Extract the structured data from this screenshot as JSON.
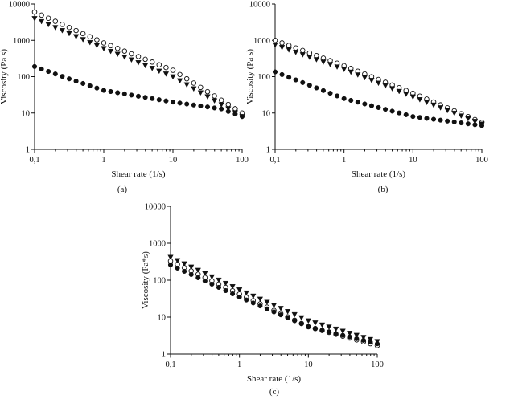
{
  "chart_data": [
    {
      "panel": "(a)",
      "type": "scatter",
      "xlabel": "Shear rate (1/s)",
      "ylabel": "Viscosity (Pa s)",
      "x_scale": "log",
      "y_scale": "log",
      "xlim": [
        0.1,
        100
      ],
      "ylim": [
        1,
        10000
      ],
      "x_ticks": [
        0.1,
        1,
        10,
        100
      ],
      "x_tick_labels": [
        "0,1",
        "1",
        "10",
        "100"
      ],
      "y_ticks": [
        1,
        10,
        100,
        1000,
        10000
      ],
      "y_tick_labels": [
        "1",
        "10",
        "100",
        "1000",
        "10000"
      ],
      "grid": false,
      "legend": "none",
      "series": [
        {
          "marker": "open-circle",
          "x_start": 0.1,
          "x_end": 100,
          "n_points": 31,
          "anchors": [
            [
              0.1,
              6000
            ],
            [
              1,
              850
            ],
            [
              10,
              150
            ],
            [
              100,
              10
            ]
          ]
        },
        {
          "marker": "filled-triangle-down",
          "x_start": 0.1,
          "x_end": 100,
          "n_points": 31,
          "anchors": [
            [
              0.1,
              4000
            ],
            [
              1,
              600
            ],
            [
              10,
              100
            ],
            [
              100,
              8
            ]
          ]
        },
        {
          "marker": "filled-circle",
          "x_start": 0.1,
          "x_end": 100,
          "n_points": 31,
          "anchors": [
            [
              0.1,
              190
            ],
            [
              0.3,
              90
            ],
            [
              1,
              42
            ],
            [
              10,
              20
            ],
            [
              50,
              13
            ],
            [
              100,
              8
            ]
          ]
        }
      ]
    },
    {
      "panel": "(b)",
      "type": "scatter",
      "xlabel": "Shear rate (1/s)",
      "ylabel": "Viscosity (Pa s)",
      "x_scale": "log",
      "y_scale": "log",
      "xlim": [
        0.1,
        100
      ],
      "ylim": [
        1,
        10000
      ],
      "x_ticks": [
        0.1,
        1,
        10,
        100
      ],
      "x_tick_labels": [
        "0,1",
        "1",
        "10",
        "100"
      ],
      "y_ticks": [
        1,
        10,
        100,
        1000,
        10000
      ],
      "y_tick_labels": [
        "1",
        "10",
        "100",
        "1000",
        "10000"
      ],
      "grid": false,
      "legend": "none",
      "series": [
        {
          "marker": "open-circle",
          "x_start": 0.1,
          "x_end": 100,
          "n_points": 31,
          "anchors": [
            [
              0.1,
              1000
            ],
            [
              1,
              200
            ],
            [
              10,
              35
            ],
            [
              100,
              5.5
            ]
          ]
        },
        {
          "marker": "filled-triangle-down",
          "x_start": 0.1,
          "x_end": 100,
          "n_points": 31,
          "anchors": [
            [
              0.1,
              750
            ],
            [
              1,
              160
            ],
            [
              10,
              28
            ],
            [
              100,
              5
            ]
          ]
        },
        {
          "marker": "filled-circle",
          "x_start": 0.1,
          "x_end": 100,
          "n_points": 31,
          "anchors": [
            [
              0.1,
              135
            ],
            [
              1,
              25
            ],
            [
              10,
              8
            ],
            [
              100,
              4.5
            ]
          ]
        }
      ]
    },
    {
      "panel": "(c)",
      "type": "scatter",
      "xlabel": "Shear rate (1/s)",
      "ylabel": "Viscosity (Pa*s)",
      "x_scale": "log",
      "y_scale": "log",
      "xlim": [
        0.1,
        100
      ],
      "ylim": [
        1,
        10000
      ],
      "x_ticks": [
        0.1,
        1,
        10,
        100
      ],
      "x_tick_labels": [
        "0,1",
        "1",
        "10",
        "100"
      ],
      "y_ticks": [
        1,
        10,
        100,
        1000,
        10000
      ],
      "y_tick_labels": [
        "1",
        "10",
        "100",
        "1000",
        "10000"
      ],
      "grid": false,
      "legend": "none",
      "series": [
        {
          "marker": "filled-triangle-down",
          "x_start": 0.1,
          "x_end": 100,
          "n_points": 31,
          "anchors": [
            [
              0.1,
              420
            ],
            [
              1,
              55
            ],
            [
              10,
              8
            ],
            [
              100,
              2.2
            ]
          ]
        },
        {
          "marker": "open-circle",
          "x_start": 0.1,
          "x_end": 100,
          "n_points": 31,
          "anchors": [
            [
              0.1,
              330
            ],
            [
              1,
              42
            ],
            [
              10,
              5.5
            ],
            [
              100,
              1.7
            ]
          ]
        },
        {
          "marker": "filled-circle",
          "x_start": 0.1,
          "x_end": 100,
          "n_points": 31,
          "anchors": [
            [
              0.1,
              260
            ],
            [
              1,
              35
            ],
            [
              10,
              5.5
            ],
            [
              100,
              1.9
            ]
          ]
        }
      ]
    }
  ]
}
